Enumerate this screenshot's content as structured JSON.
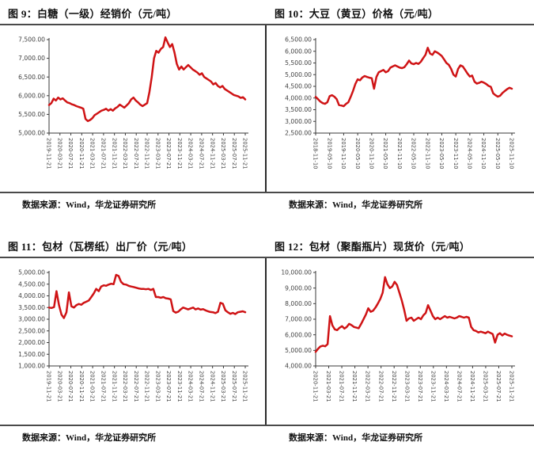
{
  "panels": [
    {
      "title": "图 9：白糖（一级）经销价（元/吨）",
      "source": "数据来源：Wind，华龙证券研究所"
    },
    {
      "title": "图 10：大豆（黄豆）价格（元/吨）",
      "source": "数据来源：Wind，华龙证券研究所"
    },
    {
      "title": "图 11：包材（瓦楞纸）出厂价（元/吨）",
      "source": "数据来源：Wind，华龙证券研究所"
    },
    {
      "title": "图 12：包材（聚酯瓶片）现货价（元/吨）",
      "source": "数据来源：Wind，华龙证券研究所"
    }
  ],
  "style": {
    "line_color": "#cf1315",
    "axis_color": "#3a3a3a",
    "tick_text_color": "#404040"
  },
  "chart_data": [
    {
      "type": "line",
      "title": "白糖（一级）经销价（元/吨）",
      "ylim": [
        5000,
        7500
      ],
      "yticks": [
        5000,
        5500,
        6000,
        6500,
        7000,
        7500
      ],
      "x_labels": [
        "2019-11-21",
        "2020-03-21",
        "2020-07-21",
        "2020-11-21",
        "2021-03-21",
        "2021-07-21",
        "2021-11-21",
        "2022-03-21",
        "2022-07-21",
        "2022-11-21",
        "2023-03-21",
        "2023-07-21",
        "2023-11-21",
        "2024-03-21",
        "2024-07-21",
        "2024-11-21",
        "2025-03-21",
        "2025-07-21",
        "2025-11-21"
      ],
      "values": [
        5750,
        5800,
        5920,
        5870,
        5950,
        5900,
        5930,
        5870,
        5820,
        5800,
        5770,
        5750,
        5720,
        5700,
        5680,
        5650,
        5380,
        5320,
        5350,
        5400,
        5480,
        5520,
        5560,
        5600,
        5620,
        5650,
        5600,
        5640,
        5600,
        5660,
        5700,
        5760,
        5720,
        5680,
        5740,
        5800,
        5900,
        5950,
        5870,
        5820,
        5760,
        5720,
        5760,
        5800,
        6100,
        6500,
        7000,
        7200,
        7150,
        7250,
        7300,
        7560,
        7420,
        7300,
        7380,
        7150,
        6850,
        6700,
        6780,
        6700,
        6760,
        6820,
        6760,
        6700,
        6660,
        6620,
        6560,
        6600,
        6500,
        6460,
        6420,
        6380,
        6300,
        6340,
        6260,
        6220,
        6260,
        6180,
        6140,
        6100,
        6060,
        6020,
        6000,
        5980,
        5940,
        5960,
        5900
      ]
    },
    {
      "type": "line",
      "title": "大豆（黄豆）价格（元/吨）",
      "ylim": [
        2500,
        6500
      ],
      "yticks": [
        2500,
        3000,
        3500,
        4000,
        4500,
        5000,
        5500,
        6000,
        6500
      ],
      "x_labels": [
        "2018-11-10",
        "2019-05-10",
        "2019-11-10",
        "2020-05-10",
        "2020-11-10",
        "2021-05-10",
        "2021-11-10",
        "2022-05-10",
        "2022-11-10",
        "2023-05-10",
        "2023-11-10",
        "2024-05-10",
        "2024-11-10",
        "2025-05-10",
        "2025-11-10"
      ],
      "values": [
        4050,
        3950,
        3850,
        3780,
        3750,
        3820,
        4080,
        4120,
        4060,
        3950,
        3700,
        3680,
        3650,
        3750,
        3820,
        4050,
        4300,
        4600,
        4800,
        4760,
        4880,
        4940,
        4900,
        4870,
        4850,
        4400,
        4900,
        5100,
        5150,
        5200,
        5100,
        5150,
        5300,
        5350,
        5400,
        5350,
        5300,
        5280,
        5320,
        5450,
        5600,
        5480,
        5450,
        5500,
        5460,
        5550,
        5700,
        5850,
        6150,
        5900,
        5850,
        6000,
        5950,
        5880,
        5800,
        5650,
        5500,
        5420,
        5250,
        5000,
        4920,
        5250,
        5400,
        5350,
        5200,
        5050,
        4920,
        4960,
        4700,
        4620,
        4650,
        4700,
        4660,
        4600,
        4520,
        4480,
        4200,
        4120,
        4060,
        4100,
        4220,
        4300,
        4380,
        4440,
        4400
      ]
    },
    {
      "type": "line",
      "title": "包材（瓦楞纸）出厂价（元/吨）",
      "ylim": [
        1000,
        5000
      ],
      "yticks": [
        1000,
        1500,
        2000,
        2500,
        3000,
        3500,
        4000,
        4500,
        5000
      ],
      "x_labels": [
        "2019-11-21",
        "2020-03-21",
        "2020-07-21",
        "2020-11-21",
        "2021-03-21",
        "2021-07-21",
        "2021-11-21",
        "2022-03-21",
        "2022-07-21",
        "2022-11-21",
        "2023-03-21",
        "2023-07-21",
        "2023-11-21",
        "2024-03-21",
        "2024-07-21",
        "2024-11-21",
        "2025-03-21",
        "2025-07-21",
        "2025-11-21"
      ],
      "values": [
        3500,
        3480,
        3520,
        4200,
        3600,
        3200,
        3050,
        3300,
        4150,
        3550,
        3500,
        3600,
        3650,
        3620,
        3700,
        3750,
        3800,
        3950,
        4100,
        4300,
        4200,
        4400,
        4450,
        4430,
        4480,
        4520,
        4500,
        4900,
        4850,
        4600,
        4500,
        4480,
        4430,
        4400,
        4380,
        4350,
        4320,
        4300,
        4300,
        4280,
        4300,
        4250,
        4300,
        3950,
        3950,
        3920,
        3950,
        3900,
        3880,
        3850,
        3350,
        3280,
        3320,
        3420,
        3500,
        3460,
        3420,
        3460,
        3500,
        3420,
        3460,
        3410,
        3430,
        3380,
        3340,
        3310,
        3300,
        3260,
        3320,
        3700,
        3660,
        3380,
        3300,
        3230,
        3270,
        3220,
        3300,
        3320,
        3340,
        3300
      ]
    },
    {
      "type": "line",
      "title": "包材（聚酯瓶片）现货价（元/吨）",
      "ylim": [
        4000,
        10000
      ],
      "yticks": [
        4000,
        5000,
        6000,
        7000,
        8000,
        9000,
        10000
      ],
      "x_labels": [
        "2020-11-21",
        "2021-03-21",
        "2021-07-21",
        "2021-11-21",
        "2022-03-21",
        "2022-07-21",
        "2022-11-21",
        "2023-03-21",
        "2023-07-21",
        "2023-11-21",
        "2024-03-21",
        "2024-07-21",
        "2024-11-21",
        "2025-03-21",
        "2025-07-21",
        "2025-11-21"
      ],
      "values": [
        4900,
        5100,
        5250,
        5300,
        5260,
        5400,
        7200,
        6600,
        6350,
        6300,
        6450,
        6550,
        6400,
        6500,
        6700,
        6620,
        6500,
        6460,
        6420,
        6700,
        7000,
        7300,
        7700,
        7480,
        7550,
        7750,
        8000,
        8300,
        8700,
        9700,
        9250,
        9000,
        9100,
        9400,
        9200,
        8700,
        8200,
        7600,
        6900,
        7050,
        7100,
        6900,
        7000,
        7100,
        7000,
        7250,
        7400,
        7900,
        7550,
        7200,
        7000,
        7100,
        7000,
        7100,
        7200,
        7100,
        7150,
        7100,
        7050,
        7100,
        7200,
        7150,
        7100,
        7150,
        7100,
        6500,
        6300,
        6250,
        6150,
        6200,
        6150,
        6100,
        6200,
        6120,
        6050,
        5500,
        6000,
        6100,
        5960,
        6080,
        6000,
        5950,
        5900
      ]
    }
  ]
}
